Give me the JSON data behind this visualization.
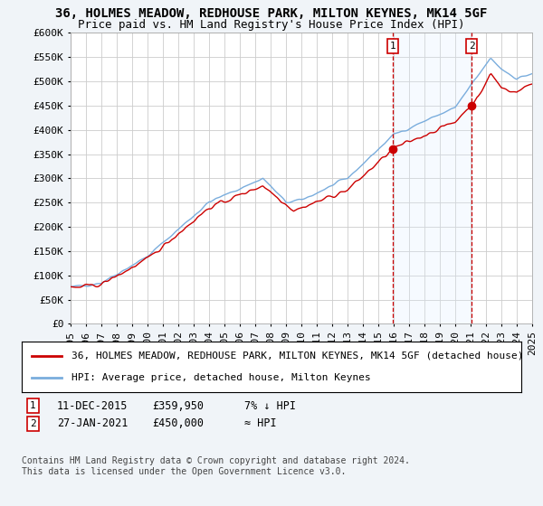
{
  "title": "36, HOLMES MEADOW, REDHOUSE PARK, MILTON KEYNES, MK14 5GF",
  "subtitle": "Price paid vs. HM Land Registry's House Price Index (HPI)",
  "ylabel_ticks": [
    "£0",
    "£50K",
    "£100K",
    "£150K",
    "£200K",
    "£250K",
    "£300K",
    "£350K",
    "£400K",
    "£450K",
    "£500K",
    "£550K",
    "£600K"
  ],
  "ylim": [
    0,
    600000
  ],
  "ytick_vals": [
    0,
    50000,
    100000,
    150000,
    200000,
    250000,
    300000,
    350000,
    400000,
    450000,
    500000,
    550000,
    600000
  ],
  "x_start_year": 1995,
  "x_end_year": 2025,
  "sale1_date": 2015.95,
  "sale1_price": 359950,
  "sale2_date": 2021.07,
  "sale2_price": 450000,
  "sale1_label": "1",
  "sale2_label": "2",
  "line_color_property": "#cc0000",
  "line_color_hpi": "#7aaddd",
  "vline_color": "#cc0000",
  "shade_color": "#ddeeff",
  "background_color": "#f0f4f8",
  "plot_bg_color": "#ffffff",
  "grid_color": "#cccccc",
  "legend_label_property": "36, HOLMES MEADOW, REDHOUSE PARK, MILTON KEYNES, MK14 5GF (detached house)",
  "legend_label_hpi": "HPI: Average price, detached house, Milton Keynes",
  "footer": "Contains HM Land Registry data © Crown copyright and database right 2024.\nThis data is licensed under the Open Government Licence v3.0.",
  "title_fontsize": 10,
  "subtitle_fontsize": 9,
  "tick_fontsize": 8,
  "legend_fontsize": 8,
  "annotation_fontsize": 8.5,
  "footer_fontsize": 7
}
